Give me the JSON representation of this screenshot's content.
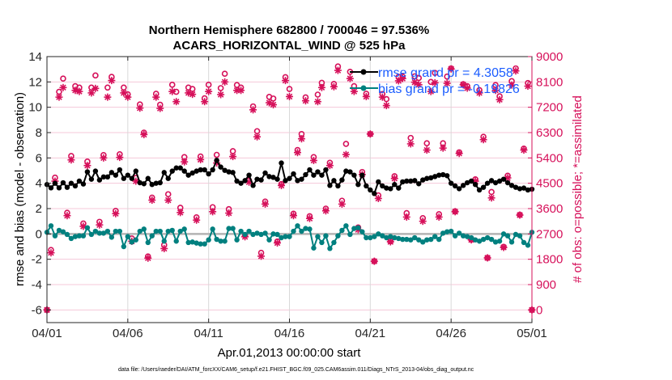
{
  "chart_data": {
    "type": "line",
    "title": [
      "Northern Hemisphere 682800 / 700046 = 97.536%",
      "ACARS_HORIZONTAL_WIND @ 525 hPa"
    ],
    "xlabel": "Apr.01,2013 00:00:00 start",
    "ylabel": "rmse and bias (model - observation)",
    "ylabel_right": "# of obs: o=possible; *=assimilated",
    "footnote": "data file: /Users/raeder/DAI/ATM_forcXX/CAM6_setup/f.e21.FHIST_BGC.f09_025.CAM6assim.011/Diags_NTrS_2013-04/obs_diag_output.nc",
    "x_ticks": [
      "04/01",
      "04/06",
      "04/11",
      "04/16",
      "04/21",
      "04/26",
      "05/01"
    ],
    "x_range": [
      "2013-04-01T00",
      "2013-05-01T00"
    ],
    "y_ticks": [
      -6,
      -4,
      -2,
      0,
      2,
      4,
      6,
      8,
      10,
      12,
      14
    ],
    "ylim": [
      -7,
      14
    ],
    "y_right_ticks": [
      0,
      900,
      1800,
      2700,
      3600,
      4500,
      5400,
      6300,
      7200,
      8100,
      9000
    ],
    "ylim_right": [
      -450,
      9000
    ],
    "grid": true,
    "legend_position": "top-right",
    "colors": {
      "rmse": "#000000",
      "bias": "#00807f",
      "obs": "#d6105a",
      "legend_text": "#1a5cff",
      "zero_line": "#b3b3b3"
    },
    "x": [
      "2013-04-01T00",
      "2013-04-01T06",
      "2013-04-01T12",
      "2013-04-01T18",
      "2013-04-02T00",
      "2013-04-02T06",
      "2013-04-02T12",
      "2013-04-02T18",
      "2013-04-03T00",
      "2013-04-03T06",
      "2013-04-03T12",
      "2013-04-03T18",
      "2013-04-04T00",
      "2013-04-04T06",
      "2013-04-04T12",
      "2013-04-04T18",
      "2013-04-05T00",
      "2013-04-05T06",
      "2013-04-05T12",
      "2013-04-05T18",
      "2013-04-06T00",
      "2013-04-06T06",
      "2013-04-06T12",
      "2013-04-06T18",
      "2013-04-07T00",
      "2013-04-07T06",
      "2013-04-07T12",
      "2013-04-07T18",
      "2013-04-08T00",
      "2013-04-08T06",
      "2013-04-08T12",
      "2013-04-08T18",
      "2013-04-09T00",
      "2013-04-09T06",
      "2013-04-09T12",
      "2013-04-09T18",
      "2013-04-10T00",
      "2013-04-10T06",
      "2013-04-10T12",
      "2013-04-10T18",
      "2013-04-11T00",
      "2013-04-11T06",
      "2013-04-11T12",
      "2013-04-11T18",
      "2013-04-12T00",
      "2013-04-12T06",
      "2013-04-12T12",
      "2013-04-12T18",
      "2013-04-13T00",
      "2013-04-13T06",
      "2013-04-13T12",
      "2013-04-13T18",
      "2013-04-14T00",
      "2013-04-14T06",
      "2013-04-14T12",
      "2013-04-14T18",
      "2013-04-15T00",
      "2013-04-15T06",
      "2013-04-15T12",
      "2013-04-15T18",
      "2013-04-16T00",
      "2013-04-16T06",
      "2013-04-16T12",
      "2013-04-16T18",
      "2013-04-17T00",
      "2013-04-17T06",
      "2013-04-17T12",
      "2013-04-17T18",
      "2013-04-18T00",
      "2013-04-18T06",
      "2013-04-18T12",
      "2013-04-18T18",
      "2013-04-19T00",
      "2013-04-19T06",
      "2013-04-19T12",
      "2013-04-19T18",
      "2013-04-20T00",
      "2013-04-20T06",
      "2013-04-20T12",
      "2013-04-20T18",
      "2013-04-21T00",
      "2013-04-21T06",
      "2013-04-21T12",
      "2013-04-21T18",
      "2013-04-22T00",
      "2013-04-22T06",
      "2013-04-22T12",
      "2013-04-22T18",
      "2013-04-23T00",
      "2013-04-23T06",
      "2013-04-23T12",
      "2013-04-23T18",
      "2013-04-24T00",
      "2013-04-24T06",
      "2013-04-24T12",
      "2013-04-24T18",
      "2013-04-25T00",
      "2013-04-25T06",
      "2013-04-25T12",
      "2013-04-25T18",
      "2013-04-26T00",
      "2013-04-26T06",
      "2013-04-26T12",
      "2013-04-26T18",
      "2013-04-27T00",
      "2013-04-27T06",
      "2013-04-27T12",
      "2013-04-27T18",
      "2013-04-28T00",
      "2013-04-28T06",
      "2013-04-28T12",
      "2013-04-28T18",
      "2013-04-29T00",
      "2013-04-29T06",
      "2013-04-29T12",
      "2013-04-29T18",
      "2013-04-30T00",
      "2013-04-30T06",
      "2013-04-30T12",
      "2013-04-30T18",
      "2013-05-01T00"
    ],
    "series": [
      {
        "name": "rmse grand pr = 4.3058",
        "axis": "left",
        "marker": "filled-circle",
        "values": [
          3.9,
          3.64,
          4.0,
          3.64,
          4.04,
          3.68,
          4.0,
          3.79,
          4.17,
          3.94,
          4.9,
          4.32,
          4.96,
          4.26,
          4.5,
          4.5,
          4.85,
          4.64,
          5.06,
          4.38,
          4.64,
          4.38,
          4.96,
          4.04,
          3.96,
          4.38,
          3.9,
          4.0,
          4.04,
          4.85,
          4.38,
          4.96,
          5.21,
          5.21,
          4.96,
          4.64,
          4.81,
          4.96,
          5.06,
          5.06,
          4.74,
          5.06,
          5.81,
          5.28,
          5.02,
          4.9,
          4.85,
          4.17,
          4.0,
          4.21,
          4.64,
          3.83,
          4.32,
          4.26,
          4.81,
          4.53,
          4.47,
          4.32,
          5.6,
          4.21,
          4.38,
          4.74,
          4.21,
          4.32,
          4.68,
          5.06,
          4.64,
          4.9,
          4.64,
          5.06,
          3.83,
          4.21,
          3.79,
          4.26,
          4.96,
          4.9,
          4.64,
          3.9,
          4.64,
          3.79,
          3.47,
          3.19,
          4.11,
          3.79,
          3.62,
          3.57,
          3.9,
          3.62,
          4.11,
          4.17,
          4.17,
          4.21,
          3.96,
          4.26,
          4.38,
          4.43,
          4.53,
          4.64,
          4.68,
          4.6,
          4.0,
          3.79,
          3.57,
          3.83,
          4.04,
          4.17,
          3.9,
          3.47,
          3.68,
          4.0,
          4.21,
          4.04,
          4.17,
          4.32,
          4.04,
          3.83,
          3.68,
          3.57,
          3.62,
          3.47,
          3.53
        ]
      },
      {
        "name": "bias grand pr = -0.19826",
        "axis": "left",
        "marker": "filled-circle",
        "values": [
          0.13,
          0.64,
          -0.15,
          0.28,
          0.17,
          -0.04,
          -0.36,
          -0.21,
          -0.15,
          -0.15,
          0.49,
          -0.04,
          0.21,
          0.06,
          0.06,
          0.21,
          -0.26,
          0.21,
          0.21,
          -1.0,
          -0.21,
          -0.64,
          -0.47,
          0.21,
          0.38,
          -0.68,
          -0.15,
          0.21,
          0.21,
          -0.57,
          0.21,
          0.28,
          -0.57,
          0.21,
          0.38,
          -0.68,
          -0.64,
          -0.72,
          -0.79,
          -0.79,
          -0.47,
          0.38,
          -0.43,
          -0.57,
          -0.57,
          0.43,
          0.43,
          -0.47,
          0.21,
          -0.04,
          0.21,
          -0.04,
          0.06,
          -0.04,
          0.06,
          -0.47,
          0.0,
          -0.04,
          -0.3,
          -0.21,
          -0.21,
          0.21,
          0.64,
          0.21,
          0.43,
          0.38,
          -1.11,
          -0.21,
          -0.68,
          -0.15,
          -1.15,
          -0.68,
          -0.15,
          0.28,
          0.64,
          -0.04,
          0.43,
          0.49,
          0.17,
          -0.3,
          -0.3,
          -0.21,
          0.0,
          -0.15,
          -0.3,
          -0.21,
          -0.3,
          -0.36,
          -0.43,
          -0.43,
          -0.47,
          -0.3,
          -0.47,
          -0.64,
          -0.47,
          -0.43,
          -0.21,
          -0.43,
          0.06,
          0.17,
          0.21,
          -0.15,
          0.06,
          -0.15,
          -0.21,
          -0.3,
          -0.47,
          -0.57,
          -0.43,
          -0.3,
          -0.43,
          -0.64,
          -0.57,
          0.0,
          -0.15,
          -0.64,
          -0.04,
          -0.15,
          -0.68,
          -0.89,
          0.13
        ]
      },
      {
        "name": "possible",
        "axis": "right",
        "marker": "open-circle",
        "values": [
          0,
          2130,
          4700,
          7750,
          8220,
          3450,
          5470,
          7950,
          7900,
          3070,
          5270,
          7900,
          8330,
          3130,
          5500,
          7900,
          8280,
          3520,
          5530,
          7900,
          7660,
          2540,
          4690,
          7300,
          6300,
          1900,
          3990,
          7680,
          7290,
          2310,
          4110,
          8000,
          7750,
          3630,
          5430,
          7900,
          7850,
          3290,
          5450,
          7520,
          8000,
          3650,
          5510,
          7880,
          8390,
          3580,
          5640,
          7990,
          7900,
          2650,
          4600,
          7230,
          6350,
          2030,
          3850,
          7570,
          7510,
          2430,
          4470,
          8270,
          7850,
          3420,
          5680,
          6250,
          7550,
          3330,
          5430,
          7650,
          8070,
          3600,
          5230,
          8030,
          8650,
          3880,
          5900,
          8460,
          7950,
          2930,
          4900,
          7680,
          6250,
          1730,
          4070,
          7670,
          7490,
          2440,
          4750,
          8280,
          8290,
          3440,
          6110,
          8300,
          8240,
          3260,
          5920,
          8100,
          8420,
          3400,
          5920,
          8290,
          8580,
          3500,
          5600,
          8020,
          7950,
          2500,
          4640,
          7810,
          6150,
          1850,
          4190,
          7990,
          7590,
          2240,
          4770,
          8130,
          8580,
          3380,
          5730,
          8060,
          0
        ]
      },
      {
        "name": "assimilated",
        "axis": "right",
        "marker": "asterisk",
        "values": [
          0,
          2030,
          4575,
          7560,
          7900,
          3350,
          5330,
          7800,
          7760,
          2970,
          5130,
          7710,
          7870,
          3020,
          5400,
          7560,
          8150,
          3420,
          5420,
          7710,
          7560,
          2440,
          4575,
          7170,
          6230,
          1840,
          3900,
          7560,
          7160,
          2180,
          3900,
          7760,
          7400,
          3460,
          5260,
          7710,
          7660,
          3190,
          5340,
          7400,
          7760,
          3490,
          5220,
          7650,
          8100,
          3440,
          5450,
          7800,
          7800,
          2600,
          4540,
          7110,
          6150,
          1910,
          3760,
          7360,
          7290,
          2380,
          4420,
          8150,
          7580,
          3350,
          5590,
          6080,
          7430,
          3250,
          5310,
          7400,
          7900,
          3520,
          5130,
          7930,
          8510,
          3760,
          5520,
          8220,
          7760,
          2850,
          4810,
          7580,
          6250,
          1730,
          3960,
          7560,
          7260,
          2420,
          4670,
          8140,
          8220,
          3300,
          5900,
          8090,
          8000,
          3150,
          5680,
          7760,
          8070,
          3300,
          5750,
          8050,
          8560,
          3490,
          5560,
          8000,
          7880,
          2490,
          4575,
          7710,
          6050,
          1850,
          3980,
          7800,
          7470,
          2220,
          4690,
          7990,
          8490,
          3370,
          5680,
          7950,
          0
        ]
      }
    ]
  }
}
